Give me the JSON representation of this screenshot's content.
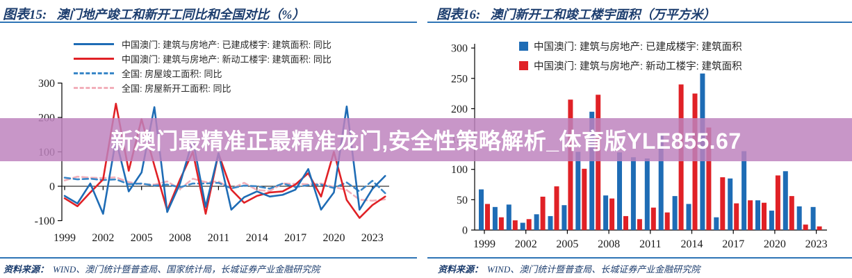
{
  "banner": {
    "text": "新澳门最精准正最精准龙门,安全性策略解析_体育版YLE855.67"
  },
  "figures": [
    {
      "label": "图表15:",
      "title": "澳门地产竣工和新开工同比和全国对比（%）",
      "source_label": "资料来源：",
      "source": "WIND、澳门统计暨普查局、国家统计局，长城证券产业金融研究院"
    },
    {
      "label": "图表16:",
      "title": "澳门新开工和竣工楼宇面积（万平方米）",
      "source_label": "资料来源：",
      "source": "WIND、澳门统计暨普查局、长城证券产业金融研究院"
    }
  ],
  "chart_data": [
    {
      "type": "line",
      "title": "澳门地产竣工和新开工同比和全国对比（%）",
      "unit": "%",
      "x": [
        1999,
        2000,
        2001,
        2002,
        2003,
        2004,
        2005,
        2006,
        2007,
        2008,
        2009,
        2010,
        2011,
        2012,
        2013,
        2014,
        2015,
        2016,
        2017,
        2018,
        2019,
        2020,
        2021,
        2022,
        2023,
        2024
      ],
      "series": [
        {
          "name": "中国澳门: 建筑与房地产: 已建成楼宇: 建筑面积: 同比",
          "color": "#1e6cb5",
          "line_style": "solid",
          "values": [
            -28,
            -50,
            8,
            -80,
            136,
            -15,
            40,
            230,
            -75,
            8,
            135,
            -60,
            96,
            -68,
            -32,
            -15,
            -30,
            -25,
            -10,
            50,
            -68,
            -18,
            232,
            -68,
            -8,
            30
          ]
        },
        {
          "name": "中国澳门: 建筑与房地产: 新动工楼宇: 建筑面积: 同比",
          "color": "#e02126",
          "line_style": "solid",
          "values": [
            -35,
            -58,
            -18,
            20,
            240,
            45,
            195,
            60,
            -70,
            20,
            100,
            -80,
            95,
            -10,
            -48,
            -28,
            -18,
            -15,
            5,
            38,
            -30,
            100,
            -40,
            -92,
            -55,
            -30
          ]
        },
        {
          "name": "全国: 房屋竣工面积: 同比",
          "color": "#3a87c8",
          "line_style": "dashed",
          "values": [
            25,
            20,
            22,
            18,
            20,
            6,
            8,
            2,
            5,
            -3,
            8,
            8,
            10,
            -6,
            2,
            0,
            -7,
            8,
            -2,
            3,
            5,
            -5,
            11,
            -15,
            16,
            -20
          ]
        },
        {
          "name": "全国: 房屋新开工面积: 同比",
          "color": "#f2afba",
          "line_style": "dashed",
          "values": [
            17,
            28,
            25,
            24,
            26,
            12,
            6,
            5,
            14,
            -8,
            22,
            12,
            14,
            -7,
            10,
            -11,
            -14,
            8,
            7,
            6,
            8,
            -2,
            -11,
            -39,
            -42,
            -38
          ]
        }
      ],
      "ylim": [
        -100,
        300
      ],
      "yticks": [
        300,
        200,
        100,
        0,
        -100
      ],
      "xticks": [
        1999,
        2002,
        2005,
        2008,
        2011,
        2014,
        2017,
        2020,
        2023
      ],
      "grid": false,
      "legend_position": "top"
    },
    {
      "type": "bar",
      "title": "澳门新开工和竣工楼宇面积（万平方米）",
      "unit": "万平方米",
      "x": [
        1999,
        2000,
        2001,
        2002,
        2003,
        2004,
        2005,
        2006,
        2007,
        2008,
        2009,
        2010,
        2011,
        2012,
        2013,
        2014,
        2015,
        2016,
        2017,
        2018,
        2019,
        2020,
        2021,
        2022,
        2023
      ],
      "series": [
        {
          "name": "中国澳门: 建筑与房地产: 已建成楼宇: 建筑面积",
          "color": "#1e6cb5",
          "values": [
            67,
            38,
            42,
            12,
            26,
            23,
            41,
            129,
            195,
            57,
            128,
            120,
            118,
            160,
            56,
            43,
            258,
            21,
            85,
            130,
            49,
            32,
            97,
            39,
            38
          ]
        },
        {
          "name": "中国澳门: 建筑与房地产: 新动工楼宇: 建筑面积",
          "color": "#e02126",
          "values": [
            43,
            21,
            16,
            18,
            55,
            72,
            215,
            101,
            223,
            52,
            23,
            18,
            37,
            29,
            240,
            225,
            169,
            87,
            44,
            49,
            45,
            90,
            56,
            9,
            6
          ]
        }
      ],
      "ylim": [
        0,
        300
      ],
      "yticks": [
        300,
        250,
        200,
        150,
        100,
        50,
        0
      ],
      "xticks": [
        1999,
        2002,
        2005,
        2008,
        2011,
        2014,
        2017,
        2020,
        2023
      ],
      "grid": false,
      "legend_position": "top"
    }
  ],
  "colors": {
    "title_navy": "#1c3d6e",
    "rule_blue": "#2e74b5",
    "banner_overlay": "#be82be",
    "banner_text": "#ffffff",
    "axis_black": "#1a1a1a"
  }
}
